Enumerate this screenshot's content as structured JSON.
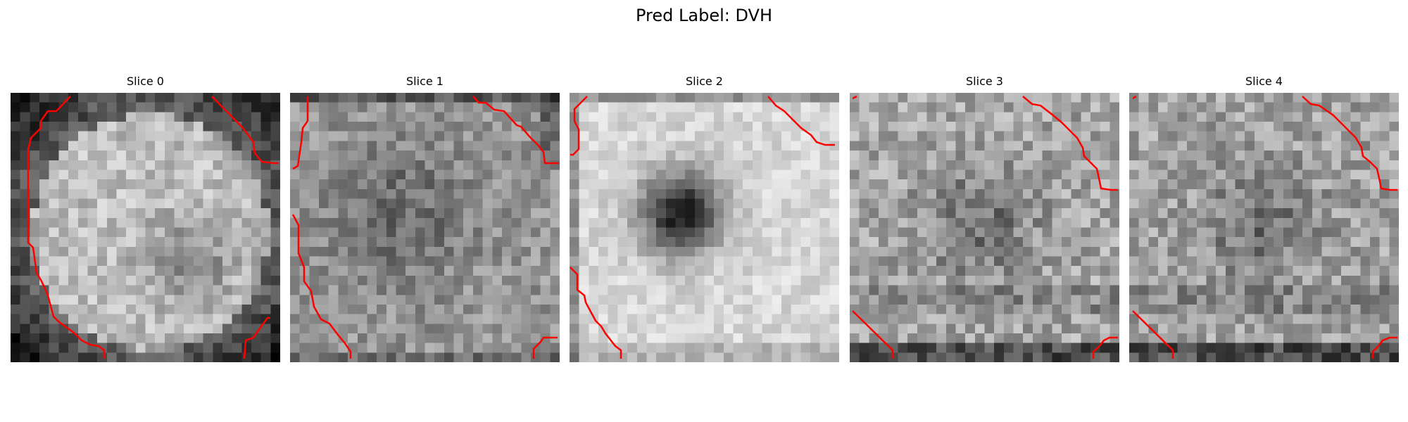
{
  "figure": {
    "title": "Pred Label: DVH"
  },
  "slices": [
    {
      "title": "Slice 0"
    },
    {
      "title": "Slice 1"
    },
    {
      "title": "Slice 2"
    },
    {
      "title": "Slice 3"
    },
    {
      "title": "Slice 4"
    }
  ],
  "colors": {
    "contour": "#ff0000",
    "background": "#ffffff"
  }
}
